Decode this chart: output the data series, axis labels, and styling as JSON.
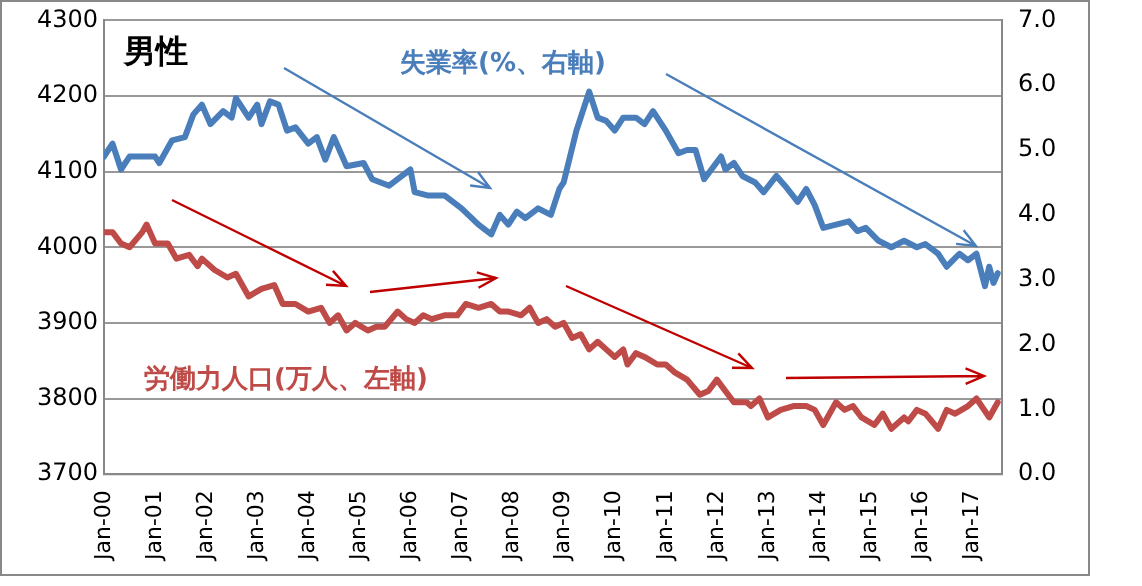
{
  "chart_data": {
    "type": "line",
    "title": "男性",
    "legend": false,
    "grid": "y",
    "marker": "none",
    "line_style": "solid",
    "xlim": [
      "2000-01",
      "2017-08"
    ],
    "xticks": [
      {
        "value": "2000-01",
        "label": "Jan-00"
      },
      {
        "value": "2001-01",
        "label": "Jan-01"
      },
      {
        "value": "2002-01",
        "label": "Jan-02"
      },
      {
        "value": "2003-01",
        "label": "Jan-03"
      },
      {
        "value": "2004-01",
        "label": "Jan-04"
      },
      {
        "value": "2005-01",
        "label": "Jan-05"
      },
      {
        "value": "2006-01",
        "label": "Jan-06"
      },
      {
        "value": "2007-01",
        "label": "Jan-07"
      },
      {
        "value": "2008-01",
        "label": "Jan-08"
      },
      {
        "value": "2009-01",
        "label": "Jan-09"
      },
      {
        "value": "2010-01",
        "label": "Jan-10"
      },
      {
        "value": "2011-01",
        "label": "Jan-11"
      },
      {
        "value": "2012-01",
        "label": "Jan-12"
      },
      {
        "value": "2013-01",
        "label": "Jan-13"
      },
      {
        "value": "2014-01",
        "label": "Jan-14"
      },
      {
        "value": "2015-01",
        "label": "Jan-15"
      },
      {
        "value": "2016-01",
        "label": "Jan-16"
      },
      {
        "value": "2017-01",
        "label": "Jan-17"
      }
    ],
    "ylim": [
      3700,
      4300
    ],
    "yticks": [
      3700,
      3800,
      3900,
      4000,
      4100,
      4200,
      4300
    ],
    "y2lim": [
      0,
      7
    ],
    "y2ticks": [
      {
        "value": 0,
        "label": "0.0"
      },
      {
        "value": 1,
        "label": "1.0"
      },
      {
        "value": 2,
        "label": "2.0"
      },
      {
        "value": 3,
        "label": "3.0"
      },
      {
        "value": 4,
        "label": "4.0"
      },
      {
        "value": 5,
        "label": "5.0"
      },
      {
        "value": 6,
        "label": "6.0"
      },
      {
        "value": 7,
        "label": "7.0"
      }
    ],
    "series": [
      {
        "name": "失業率(%、右軸)",
        "color": "#4a7ebb",
        "axis": "y2",
        "x": [
          "2000-01",
          "2000-03",
          "2000-05",
          "2000-07",
          "2001-01",
          "2001-02",
          "2001-05",
          "2001-08",
          "2001-10",
          "2001-12",
          "2002-02",
          "2002-05",
          "2002-07",
          "2002-08",
          "2002-11",
          "2003-01",
          "2003-02",
          "2003-04",
          "2003-06",
          "2003-08",
          "2003-10",
          "2004-01",
          "2004-03",
          "2004-05",
          "2004-07",
          "2004-10",
          "2005-02",
          "2005-04",
          "2005-08",
          "2005-11",
          "2006-01",
          "2006-02",
          "2006-05",
          "2006-09",
          "2007-01",
          "2007-05",
          "2007-08",
          "2007-10",
          "2007-12",
          "2008-02",
          "2008-04",
          "2008-07",
          "2008-10",
          "2008-12",
          "2009-01",
          "2009-04",
          "2009-07",
          "2009-09",
          "2009-11",
          "2010-01",
          "2010-03",
          "2010-06",
          "2010-08",
          "2010-10",
          "2011-01",
          "2011-04",
          "2011-06",
          "2011-08",
          "2011-10",
          "2012-02",
          "2012-03",
          "2012-05",
          "2012-07",
          "2012-10",
          "2012-12",
          "2013-03",
          "2013-05",
          "2013-08",
          "2013-10",
          "2013-12",
          "2014-02",
          "2014-05",
          "2014-08",
          "2014-10",
          "2014-12",
          "2015-03",
          "2015-06",
          "2015-09",
          "2015-12",
          "2016-02",
          "2016-05",
          "2016-07",
          "2016-10",
          "2016-12",
          "2017-02",
          "2017-04",
          "2017-05",
          "2017-06",
          "2017-07"
        ],
        "values": [
          4.9,
          5.1,
          4.7,
          4.9,
          4.9,
          4.8,
          5.15,
          5.2,
          5.55,
          5.7,
          5.4,
          5.6,
          5.5,
          5.8,
          5.5,
          5.7,
          5.4,
          5.75,
          5.7,
          5.3,
          5.35,
          5.1,
          5.2,
          4.85,
          5.2,
          4.75,
          4.8,
          4.55,
          4.45,
          4.6,
          4.7,
          4.35,
          4.3,
          4.3,
          4.1,
          3.85,
          3.7,
          4.0,
          3.85,
          4.05,
          3.95,
          4.1,
          4.0,
          4.4,
          4.5,
          5.3,
          5.9,
          5.5,
          5.45,
          5.3,
          5.5,
          5.5,
          5.4,
          5.6,
          5.3,
          4.95,
          5.0,
          5.0,
          4.55,
          4.9,
          4.7,
          4.8,
          4.6,
          4.5,
          4.35,
          4.6,
          4.45,
          4.2,
          4.4,
          4.15,
          3.8,
          3.85,
          3.9,
          3.75,
          3.8,
          3.6,
          3.5,
          3.6,
          3.5,
          3.55,
          3.4,
          3.2,
          3.4,
          3.3,
          3.4,
          2.9,
          3.2,
          2.95,
          3.1
        ]
      },
      {
        "name": "労働力人口(万人、左軸)",
        "color": "#be4b48",
        "x": [
          "2000-01",
          "2000-03",
          "2000-05",
          "2000-07",
          "2000-10",
          "2000-11",
          "2001-01",
          "2001-04",
          "2001-06",
          "2001-09",
          "2001-11",
          "2001-12",
          "2002-03",
          "2002-06",
          "2002-08",
          "2002-11",
          "2003-02",
          "2003-05",
          "2003-07",
          "2003-10",
          "2004-01",
          "2004-04",
          "2004-06",
          "2004-08",
          "2004-10",
          "2004-12",
          "2005-03",
          "2005-05",
          "2005-07",
          "2005-10",
          "2005-12",
          "2006-02",
          "2006-04",
          "2006-06",
          "2006-09",
          "2006-12",
          "2007-02",
          "2007-05",
          "2007-08",
          "2007-10",
          "2007-12",
          "2008-03",
          "2008-05",
          "2008-07",
          "2008-09",
          "2008-11",
          "2009-01",
          "2009-03",
          "2009-05",
          "2009-07",
          "2009-09",
          "2009-11",
          "2010-01",
          "2010-03",
          "2010-04",
          "2010-06",
          "2010-08",
          "2010-11",
          "2011-01",
          "2011-03",
          "2011-06",
          "2011-09",
          "2011-11",
          "2012-01",
          "2012-03",
          "2012-05",
          "2012-08",
          "2012-09",
          "2012-11",
          "2013-01",
          "2013-04",
          "2013-07",
          "2013-10",
          "2013-12",
          "2014-02",
          "2014-05",
          "2014-07",
          "2014-09",
          "2014-11",
          "2015-02",
          "2015-04",
          "2015-06",
          "2015-09",
          "2015-10",
          "2015-12",
          "2016-02",
          "2016-05",
          "2016-07",
          "2016-09",
          "2016-12",
          "2017-02",
          "2017-05",
          "2017-07"
        ],
        "values": [
          4020,
          4020,
          4005,
          4000,
          4020,
          4030,
          4005,
          4005,
          3985,
          3990,
          3975,
          3985,
          3970,
          3960,
          3965,
          3935,
          3945,
          3950,
          3925,
          3925,
          3915,
          3920,
          3900,
          3910,
          3890,
          3900,
          3890,
          3895,
          3895,
          3915,
          3905,
          3900,
          3910,
          3905,
          3910,
          3910,
          3925,
          3920,
          3925,
          3915,
          3915,
          3910,
          3920,
          3900,
          3905,
          3895,
          3900,
          3880,
          3885,
          3865,
          3875,
          3865,
          3855,
          3865,
          3845,
          3860,
          3855,
          3845,
          3845,
          3835,
          3825,
          3805,
          3810,
          3825,
          3810,
          3795,
          3795,
          3790,
          3800,
          3775,
          3785,
          3790,
          3790,
          3785,
          3765,
          3795,
          3785,
          3790,
          3775,
          3765,
          3780,
          3760,
          3775,
          3770,
          3785,
          3780,
          3760,
          3785,
          3780,
          3790,
          3800,
          3775,
          3795
        ]
      }
    ]
  }
}
